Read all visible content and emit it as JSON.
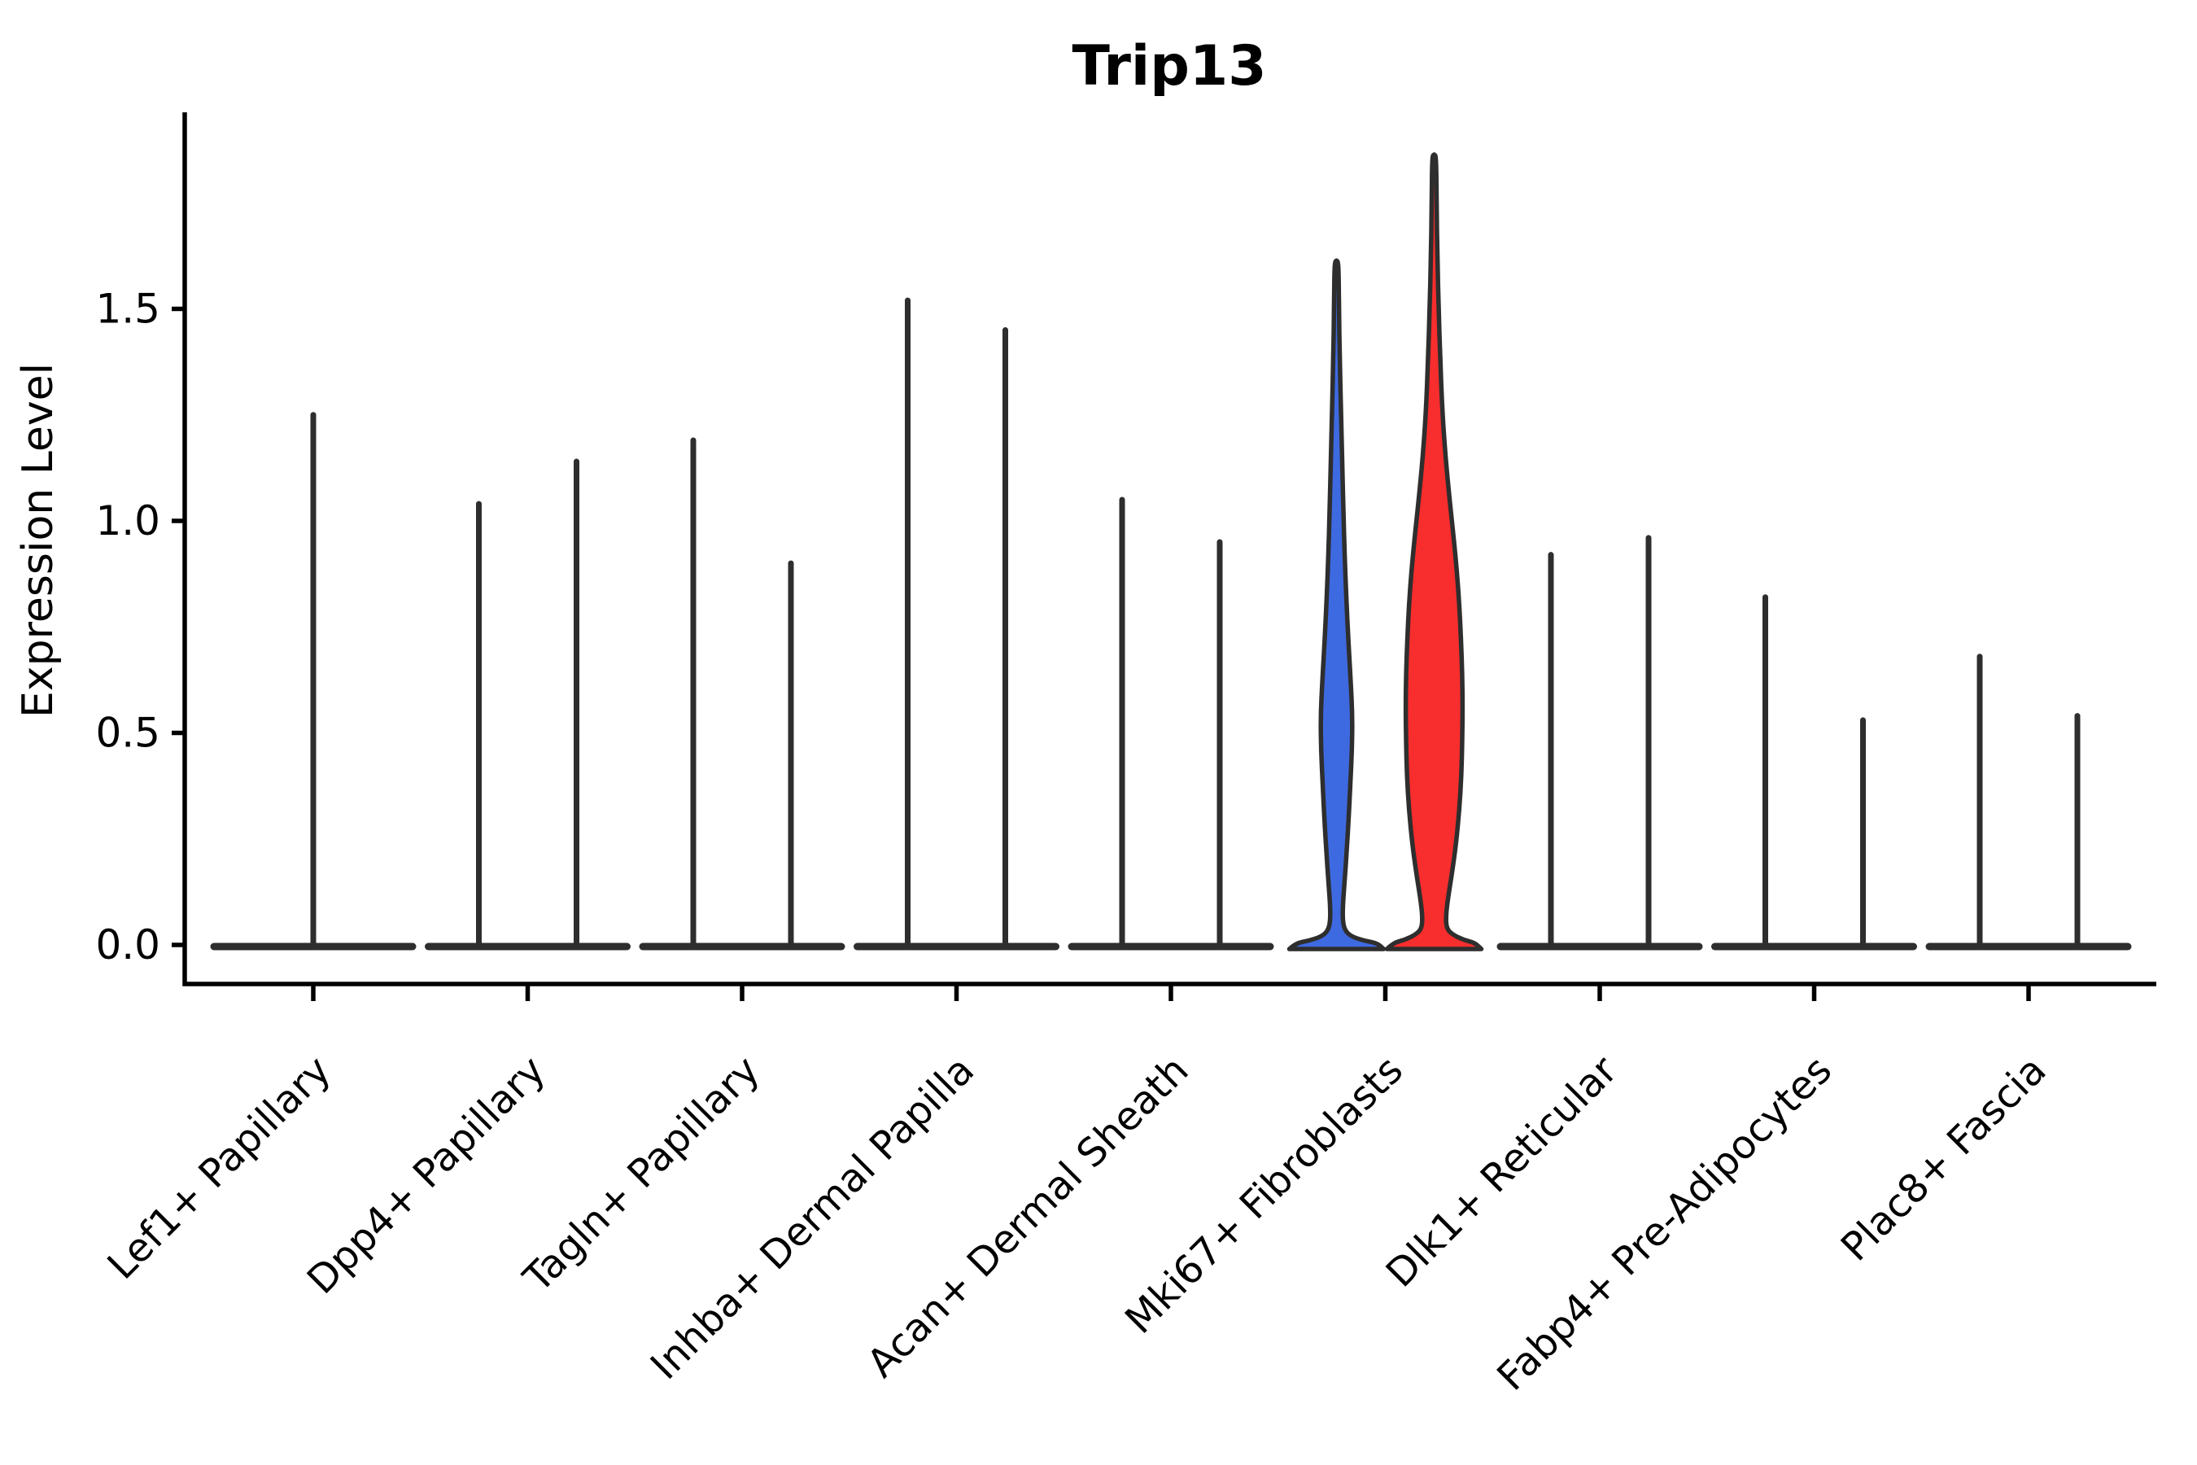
{
  "figure": {
    "title": "Trip13",
    "y_axis_label": "Expression Level",
    "y_tick_labels": [
      "0.0",
      "0.5",
      "1.0",
      "1.5"
    ]
  },
  "colors": {
    "violin_blue": "#3E6AE1",
    "violin_red": "#F82D2D",
    "outline": "#2E2E2E",
    "axis": "#000000"
  },
  "chart_data": {
    "type": "violin",
    "title": "Trip13",
    "xlabel": "",
    "ylabel": "Expression Level",
    "ylim": [
      0,
      1.95
    ],
    "yticks": [
      0,
      0.5,
      1.0,
      1.5
    ],
    "ytick_labels": [
      "0.0",
      "0.5",
      "1.0",
      "1.5"
    ],
    "grid": false,
    "legend_position": "none",
    "x_tick_rotation_deg": 45,
    "categories": [
      "Lef1+ Papillary",
      "Dpp4+ Papillary",
      "Tagln+ Papillary",
      "Inhba+ Dermal Papilla",
      "Acan+ Dermal Sheath",
      "Mki67+ Fibroblasts",
      "Dlk1+ Reticular",
      "Fabp4+ Pre-Adipocytes",
      "Plac8+ Fascia"
    ],
    "series": [
      {
        "name": "group-left-blue",
        "color": "#3E6AE1",
        "max_expression": [
          1.25,
          1.04,
          1.19,
          1.52,
          1.05,
          1.61,
          0.92,
          0.82,
          0.68
        ]
      },
      {
        "name": "group-right-red",
        "color": "#F82D2D",
        "max_expression": [
          null,
          1.14,
          0.9,
          1.45,
          0.95,
          1.86,
          0.96,
          0.53,
          0.54
        ]
      }
    ],
    "violins": [
      {
        "category": "Lef1+ Papillary",
        "glyphs": [
          {
            "kind": "spike",
            "offset": 0,
            "max": 1.25
          }
        ]
      },
      {
        "category": "Dpp4+ Papillary",
        "glyphs": [
          {
            "kind": "spike",
            "offset": -60,
            "max": 1.04
          },
          {
            "kind": "spike",
            "offset": 60,
            "max": 1.14
          }
        ]
      },
      {
        "category": "Tagln+ Papillary",
        "glyphs": [
          {
            "kind": "spike",
            "offset": -60,
            "max": 1.19
          },
          {
            "kind": "spike",
            "offset": 60,
            "max": 0.9
          }
        ]
      },
      {
        "category": "Inhba+ Dermal Papilla",
        "glyphs": [
          {
            "kind": "spike",
            "offset": -60,
            "max": 1.52
          },
          {
            "kind": "spike",
            "offset": 60,
            "max": 1.45
          }
        ]
      },
      {
        "category": "Acan+ Dermal Sheath",
        "glyphs": [
          {
            "kind": "spike",
            "offset": -60,
            "max": 1.05
          },
          {
            "kind": "spike",
            "offset": 60,
            "max": 0.95
          }
        ]
      },
      {
        "category": "Mki67+ Fibroblasts",
        "glyphs": [
          {
            "kind": "violin",
            "offset": -60,
            "max": 1.61,
            "color_key": "violin_blue",
            "name": "violin-body-blue",
            "profile": [
              [
                1.61,
                2.5
              ],
              [
                1.5,
                3
              ],
              [
                1.38,
                4
              ],
              [
                1.26,
                5.5
              ],
              [
                1.14,
                7
              ],
              [
                1.02,
                8.5
              ],
              [
                0.92,
                10
              ],
              [
                0.82,
                12
              ],
              [
                0.72,
                14.5
              ],
              [
                0.62,
                17.5
              ],
              [
                0.54,
                19.5
              ],
              [
                0.46,
                19
              ],
              [
                0.38,
                17
              ],
              [
                0.3,
                15
              ],
              [
                0.22,
                12.5
              ],
              [
                0.15,
                10
              ],
              [
                0.1,
                8
              ],
              [
                0.06,
                7.5
              ],
              [
                0.035,
                10
              ],
              [
                0.02,
                18
              ],
              [
                0.01,
                34
              ],
              [
                0.004,
                50
              ],
              [
                0,
                58
              ]
            ]
          },
          {
            "kind": "violin",
            "offset": 60,
            "max": 1.86,
            "color_key": "violin_red",
            "name": "violin-body-red",
            "profile": [
              [
                1.86,
                2.5
              ],
              [
                1.74,
                3
              ],
              [
                1.62,
                4
              ],
              [
                1.5,
                5.5
              ],
              [
                1.38,
                7.5
              ],
              [
                1.26,
                10
              ],
              [
                1.15,
                14
              ],
              [
                1.05,
                19
              ],
              [
                0.96,
                24
              ],
              [
                0.88,
                28
              ],
              [
                0.8,
                31
              ],
              [
                0.72,
                33
              ],
              [
                0.64,
                34.5
              ],
              [
                0.56,
                35
              ],
              [
                0.48,
                34.5
              ],
              [
                0.4,
                33.5
              ],
              [
                0.32,
                31
              ],
              [
                0.24,
                27
              ],
              [
                0.17,
                22
              ],
              [
                0.11,
                17
              ],
              [
                0.07,
                14.5
              ],
              [
                0.04,
                15
              ],
              [
                0.025,
                22
              ],
              [
                0.012,
                36
              ],
              [
                0.005,
                50
              ],
              [
                0,
                58
              ]
            ]
          }
        ]
      },
      {
        "category": "Dlk1+ Reticular",
        "glyphs": [
          {
            "kind": "spike",
            "offset": -60,
            "max": 0.92
          },
          {
            "kind": "spike",
            "offset": 60,
            "max": 0.96
          }
        ]
      },
      {
        "category": "Fabp4+ Pre-Adipocytes",
        "glyphs": [
          {
            "kind": "spike",
            "offset": -60,
            "max": 0.82
          },
          {
            "kind": "spike",
            "offset": 60,
            "max": 0.53
          }
        ]
      },
      {
        "category": "Plac8+ Fascia",
        "glyphs": [
          {
            "kind": "spike",
            "offset": -60,
            "max": 0.68
          },
          {
            "kind": "spike",
            "offset": 60,
            "max": 0.54
          }
        ]
      }
    ]
  }
}
